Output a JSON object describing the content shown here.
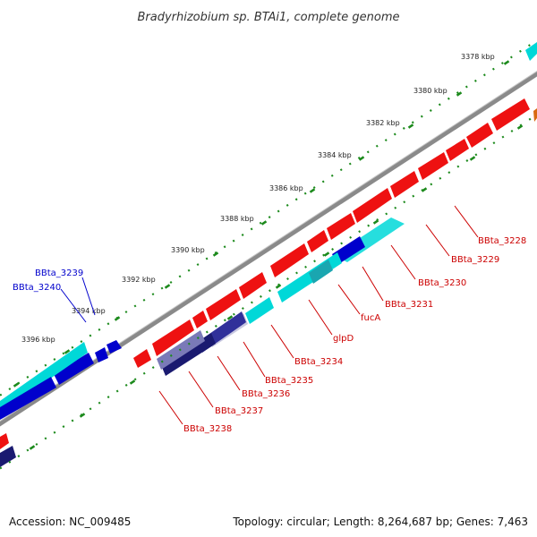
{
  "title": "Bradyrhizobium sp. BTAi1, complete genome",
  "footer": {
    "accession": "Accession: NC_009485",
    "summary": "Topology: circular; Length: 8,264,687 bp; Genes: 7,463"
  },
  "colors": {
    "forward_gene": "#ee1111",
    "reverse_gene": "#00d8d8",
    "other_gene": "#0000cc",
    "tick": "#1c8a1c",
    "backbone": "#8a8a8a",
    "red_label": "#cc0000",
    "blue_label": "#0000cc"
  },
  "ticks": [
    {
      "label": "3378 kbp"
    },
    {
      "label": "3380 kbp"
    },
    {
      "label": "3382 kbp"
    },
    {
      "label": "3384 kbp"
    },
    {
      "label": "3386 kbp"
    },
    {
      "label": "3388 kbp"
    },
    {
      "label": "3390 kbp"
    },
    {
      "label": "3392 kbp"
    },
    {
      "label": "3394 kbp"
    },
    {
      "label": "3396 kbp"
    }
  ],
  "gene_labels": [
    {
      "name": "BBta_3228"
    },
    {
      "name": "BBta_3229"
    },
    {
      "name": "BBta_3230"
    },
    {
      "name": "BBta_3231"
    },
    {
      "name": "fucA"
    },
    {
      "name": "glpD"
    },
    {
      "name": "BBta_3234"
    },
    {
      "name": "BBta_3235"
    },
    {
      "name": "BBta_3236"
    },
    {
      "name": "BBta_3237"
    },
    {
      "name": "BBta_3238"
    },
    {
      "name": "BBta_3239"
    },
    {
      "name": "BBta_3240"
    }
  ]
}
